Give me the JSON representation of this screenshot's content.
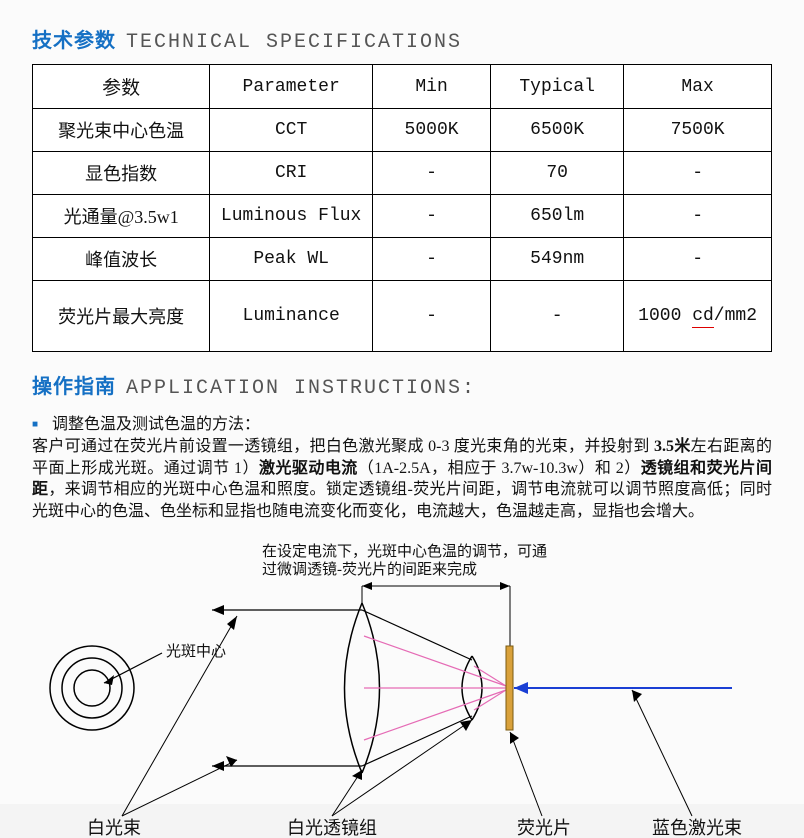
{
  "section1": {
    "title_zh": "技术参数",
    "title_en": "TECHNICAL SPECIFICATIONS"
  },
  "table": {
    "headers": [
      "参数",
      "Parameter",
      "Min",
      "Typical",
      "Max"
    ],
    "col_widths": [
      "24%",
      "22%",
      "16%",
      "18%",
      "20%"
    ],
    "rows": [
      {
        "zh": "聚光束中心色温",
        "en": "CCT",
        "min": "5000K",
        "typ": "6500K",
        "max": "7500K",
        "tall": false
      },
      {
        "zh": "显色指数",
        "en": "CRI",
        "min": "-",
        "typ": "70",
        "max": "-",
        "tall": false
      },
      {
        "zh": "光通量@3.5w1",
        "en": "Luminous Flux",
        "min": "-",
        "typ": "650lm",
        "max": "-",
        "tall": false
      },
      {
        "zh": "峰值波长",
        "en": "Peak WL",
        "min": "-",
        "typ": "549nm",
        "max": "-",
        "tall": false
      },
      {
        "zh": "荧光片最大亮度",
        "en": "Luminance",
        "min": "-",
        "typ": "-",
        "max": "1000 cd/mm2",
        "max_underline": "cd",
        "tall": true
      }
    ]
  },
  "section2": {
    "title_zh": "操作指南",
    "title_en": "APPLICATION INSTRUCTIONS:"
  },
  "instructions": {
    "bullet": "调整色温及测试色温的方法：",
    "body_parts": [
      {
        "t": "客户可通过在荧光片前设置一透镜组，把白色激光聚成 0-3 度光束角的光束，并投射到 "
      },
      {
        "t": "3.5米",
        "b": true
      },
      {
        "t": "左右距离的平面上形成光斑。通过调节 1）"
      },
      {
        "t": "激光驱动电流",
        "b": true
      },
      {
        "t": "（1A-2.5A，相应于 3.7w-10.3w）和 2）"
      },
      {
        "t": "透镜组和荧光片间距",
        "b": true
      },
      {
        "t": "，来调节相应的光斑中心色温和照度。锁定透镜组-荧光片间距，调节电流就可以调节照度高低；同时光斑中心的色温、色坐标和显指也随电流变化而变化，电流越大，色温越走高，显指也会增大。"
      }
    ]
  },
  "diagram": {
    "caption_line1": "在设定电流下，光斑中心色温的调节，可通",
    "caption_line2": "过微调透镜-荧光片的间距来完成",
    "label_center": "光斑中心",
    "label_whitebeam": "白光束",
    "label_lensgroup": "白光透镜组",
    "label_phosphor": "荧光片",
    "label_bluelaser": "蓝色激光束",
    "colors": {
      "stroke": "#000000",
      "pink": "#e56bb5",
      "blue": "#1a3fd4",
      "phosphor": "#d9a13b"
    }
  }
}
